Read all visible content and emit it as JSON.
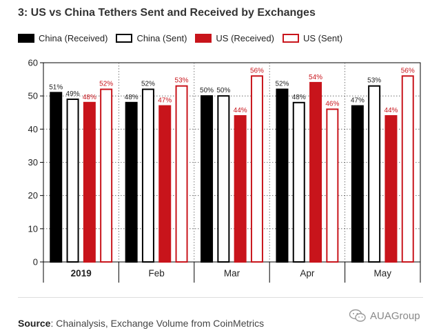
{
  "header": {
    "title": "3: US vs China Tethers Sent and Received by Exchanges"
  },
  "legend": {
    "items": [
      {
        "label": "China (Received)"
      },
      {
        "label": "China (Sent)"
      },
      {
        "label": "US (Received)"
      },
      {
        "label": "US (Sent)"
      }
    ]
  },
  "chart_data": {
    "type": "bar",
    "categories": [
      "2019",
      "Feb",
      "Mar",
      "Apr",
      "May"
    ],
    "series": [
      {
        "name": "China (Received)",
        "values": [
          51,
          48,
          50,
          52,
          47
        ],
        "labels": [
          "51%",
          "48%",
          "50%",
          "52%",
          "47%"
        ],
        "fill": "#000000",
        "stroke": "#000000",
        "label_color": "#222222"
      },
      {
        "name": "China (Sent)",
        "values": [
          49,
          52,
          50,
          48,
          53
        ],
        "labels": [
          "49%",
          "52%",
          "50%",
          "48%",
          "53%"
        ],
        "fill": "#ffffff",
        "stroke": "#000000",
        "label_color": "#222222"
      },
      {
        "name": "US (Received)",
        "values": [
          48,
          47,
          44,
          54,
          44
        ],
        "labels": [
          "48%",
          "47%",
          "44%",
          "54%",
          "44%"
        ],
        "fill": "#c8141b",
        "stroke": "#c8141b",
        "label_color": "#c8141b"
      },
      {
        "name": "US (Sent)",
        "values": [
          52,
          53,
          56,
          46,
          56
        ],
        "labels": [
          "52%",
          "53%",
          "56%",
          "46%",
          "56%"
        ],
        "fill": "#ffffff",
        "stroke": "#c8141b",
        "label_color": "#c8141b"
      }
    ],
    "yticks": [
      0,
      10,
      20,
      30,
      40,
      50,
      60
    ],
    "ylim": [
      0,
      60
    ],
    "title": "3: US vs China Tethers Sent and Received by Exchanges",
    "xlabel": "",
    "ylabel": "",
    "grid": "dotted",
    "legend_position": "top"
  },
  "footer": {
    "source_label": "Source",
    "source_text": ": Chainalysis, Exchange Volume from CoinMetrics",
    "watermark": "AUAGroup"
  }
}
